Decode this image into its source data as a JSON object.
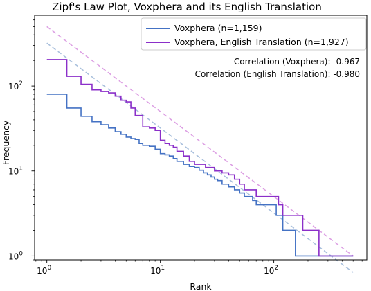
{
  "chart_data": {
    "type": "line",
    "title": "Zipf's Law Plot, Voxphera and its English Translation",
    "xlabel": "Rank",
    "ylabel": "Frequency",
    "xscale": "log",
    "yscale": "log",
    "xlim": [
      0.78,
      660
    ],
    "ylim": [
      0.9,
      680
    ],
    "xticks": [
      {
        "value": 1,
        "base": "10",
        "exp": "0"
      },
      {
        "value": 10,
        "base": "10",
        "exp": "1"
      },
      {
        "value": 100,
        "base": "10",
        "exp": "2"
      }
    ],
    "yticks": [
      {
        "value": 1,
        "base": "10",
        "exp": "0"
      },
      {
        "value": 10,
        "base": "10",
        "exp": "1"
      },
      {
        "value": 100,
        "base": "10",
        "exp": "2"
      }
    ],
    "grid": false,
    "legend_position": "top-right",
    "series": [
      {
        "name": "Voxphera (n=1,159)",
        "color": "#4472c4",
        "x": [
          1,
          1.5,
          2,
          2.5,
          3,
          3.5,
          4,
          4.5,
          5,
          5.5,
          6,
          6.5,
          7,
          8,
          9,
          10,
          11,
          12,
          13,
          14,
          16,
          18,
          20,
          22,
          24,
          26,
          28,
          30,
          32,
          35,
          40,
          45,
          50,
          55,
          60,
          65,
          70,
          75,
          80,
          85,
          90,
          95,
          100,
          105,
          110,
          120,
          130,
          140,
          150,
          155,
          156,
          500
        ],
        "y": [
          80,
          55,
          44,
          38,
          35,
          32,
          29,
          27,
          25,
          24,
          23.5,
          21,
          20,
          19.5,
          18,
          16,
          15.5,
          15,
          14,
          13,
          12,
          11.3,
          11,
          10.2,
          9.5,
          9,
          8.5,
          8,
          7.7,
          7,
          6.5,
          6,
          5.5,
          5,
          5,
          4.5,
          4,
          4,
          4,
          4,
          4,
          4,
          4,
          3,
          3,
          2,
          2,
          2,
          2,
          1,
          1,
          1
        ]
      },
      {
        "name": "Voxphera, English Translation (n=1,927)",
        "color": "#8b2fc9",
        "x": [
          1,
          1.5,
          2,
          2.5,
          3,
          3.5,
          4,
          4.5,
          5,
          5.5,
          6,
          7,
          8,
          9,
          10,
          11,
          12,
          13,
          14,
          16,
          18,
          20,
          25,
          30,
          35,
          40,
          45,
          50,
          55,
          60,
          65,
          70,
          80,
          90,
          100,
          110,
          120,
          130,
          140,
          150,
          160,
          180,
          200,
          220,
          240,
          250,
          500
        ],
        "y": [
          205,
          130,
          105,
          90,
          86,
          83,
          76,
          68,
          65,
          55,
          45,
          33,
          32,
          30,
          23,
          21,
          20,
          19,
          17,
          15,
          13,
          12,
          11,
          10,
          9.5,
          9,
          8,
          7,
          6,
          6,
          6,
          5,
          5,
          5,
          5,
          4,
          3,
          3,
          3,
          3,
          3,
          2,
          2,
          2,
          2,
          1,
          1
        ]
      }
    ],
    "reference_lines": [
      {
        "color": "#a8bfdc",
        "x": [
          1,
          500
        ],
        "y": [
          320,
          0.64
        ],
        "style": "dashed"
      },
      {
        "color": "#dc9ee3",
        "x": [
          1,
          500
        ],
        "y": [
          500,
          1.0
        ],
        "style": "dashed"
      }
    ],
    "annotations": [
      "Correlation (Voxphera): -0.967",
      "Correlation (English Translation): -0.980"
    ]
  }
}
